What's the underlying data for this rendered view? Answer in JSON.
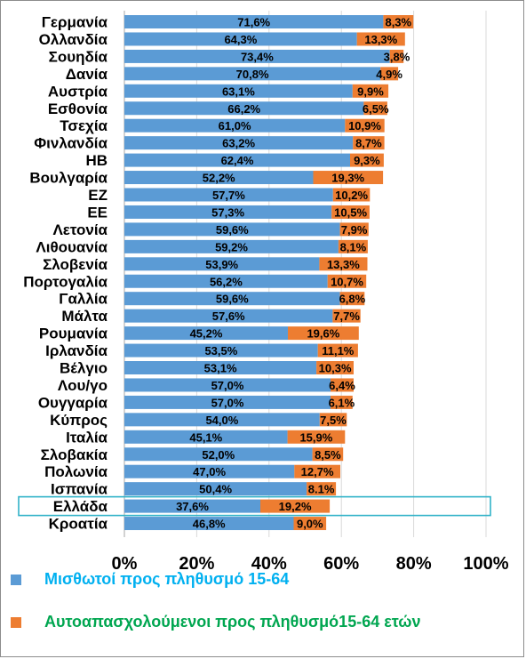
{
  "chart_data": {
    "type": "bar",
    "stacked": true,
    "orientation": "horizontal",
    "categories": [
      "Γερμανία",
      "Ολλανδία",
      "Σουηδία",
      "Δανία",
      "Αυστρία",
      "Εσθονία",
      "Τσεχία",
      "Φινλανδία",
      "ΗΒ",
      "Βουλγαρία",
      "ΕΖ",
      "ΕΕ",
      "Λετονία",
      "Λιθουανία",
      "Σλοβενία",
      "Πορτογαλία",
      "Γαλλία",
      "Μάλτα",
      "Ρουμανία",
      "Ιρλανδία",
      "Βέλγιο",
      "Λου/γο",
      "Ουγγαρία",
      "Κύπρος",
      "Ιταλία",
      "Σλοβακία",
      "Πολωνία",
      "Ισπανία",
      "Ελλάδα",
      "Κροατία"
    ],
    "series": [
      {
        "name": "Μισθωτοί προς πληθυσμό 15-64",
        "color": "#5b9bd5",
        "values": [
          71.6,
          64.3,
          73.4,
          70.8,
          63.1,
          66.2,
          61.0,
          63.2,
          62.4,
          52.2,
          57.7,
          57.3,
          59.6,
          59.2,
          53.9,
          56.2,
          59.6,
          57.6,
          45.2,
          53.5,
          53.1,
          57.0,
          57.0,
          54.0,
          45.1,
          52.0,
          47.0,
          50.4,
          37.6,
          46.8
        ],
        "labels": [
          "71,6%",
          "64,3%",
          "73,4%",
          "70,8%",
          "63,1%",
          "66,2%",
          "61,0%",
          "63,2%",
          "62,4%",
          "52,2%",
          "57,7%",
          "57,3%",
          "59,6%",
          "59,2%",
          "53,9%",
          "56,2%",
          "59,6%",
          "57,6%",
          "45,2%",
          "53,5%",
          "53,1%",
          "57,0%",
          "57,0%",
          "54,0%",
          "45,1%",
          "52,0%",
          "47,0%",
          "50,4%",
          "37,6%",
          "46,8%"
        ]
      },
      {
        "name": "Αυτοαπασχολούμενοι προς πληθυσμό15-64 ετών",
        "color": "#ed7d31",
        "values": [
          8.3,
          13.3,
          3.8,
          4.9,
          9.9,
          6.5,
          10.9,
          8.7,
          9.3,
          19.3,
          10.2,
          10.5,
          7.9,
          8.1,
          13.3,
          10.7,
          6.8,
          7.7,
          19.6,
          11.1,
          10.3,
          6.4,
          6.1,
          7.5,
          15.9,
          8.5,
          12.7,
          8.1,
          19.2,
          9.0
        ],
        "labels": [
          "8,3%",
          "13,3%",
          "3,8%",
          "4,9%",
          "9,9%",
          "6,5%",
          "10,9%",
          "8,7%",
          "9,3%",
          "19,3%",
          "10,2%",
          "10,5%",
          "7,9%",
          "8,1%",
          "13,3%",
          "10,7%",
          "6,8%",
          "7,7%",
          "19,6%",
          "11,1%",
          "10,3%",
          "6,4%",
          "6,1%",
          "7,5%",
          "15,9%",
          "8,5%",
          "12,7%",
          "8.1%",
          "19,2%",
          "9,0%"
        ]
      }
    ],
    "xlim": [
      0,
      100
    ],
    "x_ticks": [
      "0%",
      "20%",
      "40%",
      "60%",
      "80%",
      "100%"
    ],
    "x_tick_values": [
      0,
      20,
      40,
      60,
      80,
      100
    ],
    "grid": "vertical",
    "grid_color": "#d9d9d9",
    "highlight_category": "Ελλάδα",
    "highlight_color": "#31b2c8",
    "legend_position": "bottom"
  },
  "legend": {
    "items": [
      {
        "label": "Μισθωτοί προς πληθυσμό 15-64",
        "text_color": "#00b0f0"
      },
      {
        "label": "Αυτοαπασχολούμενοι προς πληθυσμό15-64 ετών",
        "text_color": "#00a650"
      }
    ]
  }
}
